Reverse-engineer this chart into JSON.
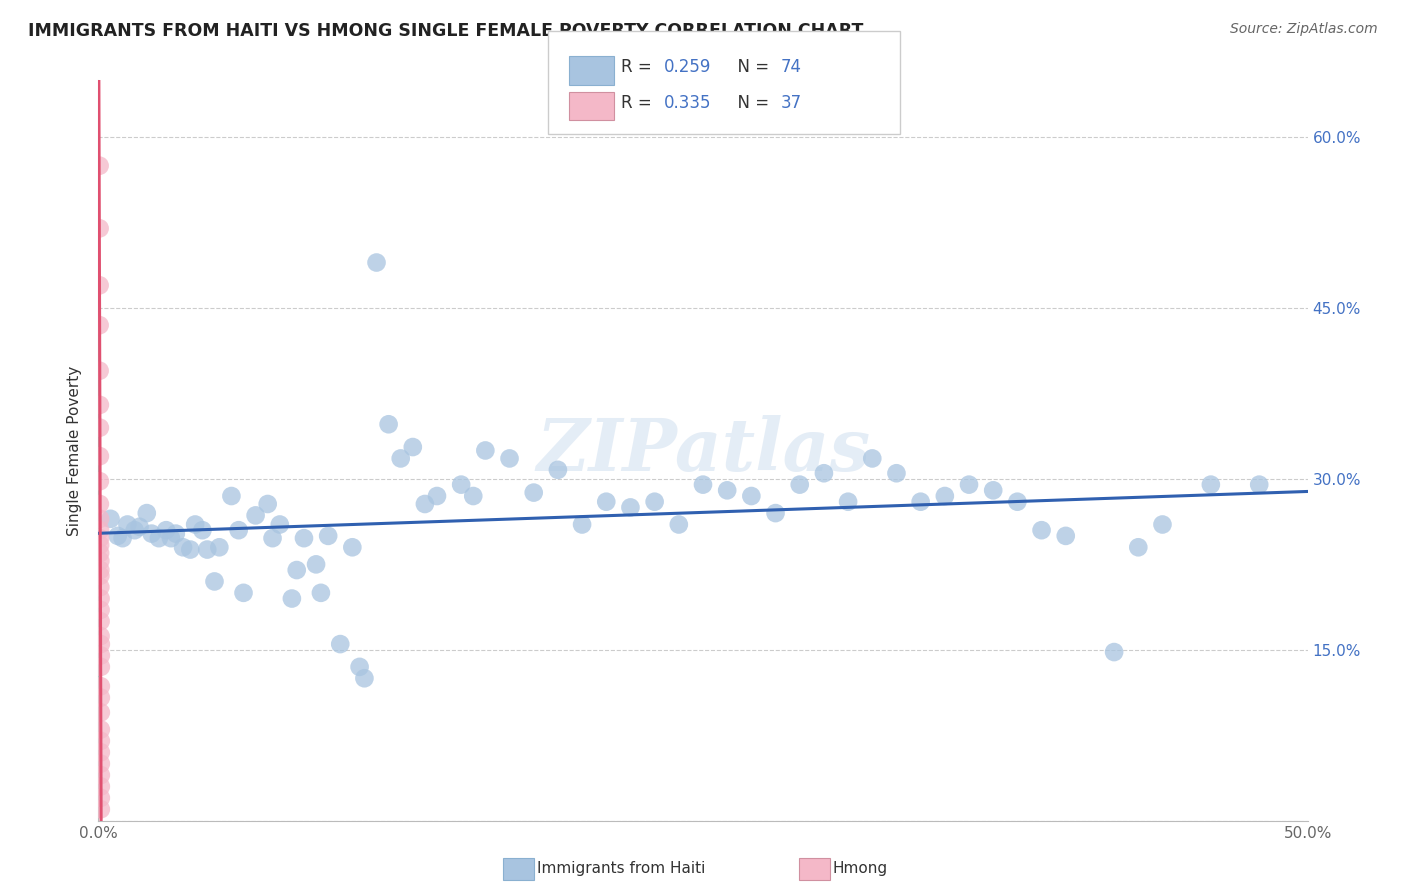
{
  "title": "IMMIGRANTS FROM HAITI VS HMONG SINGLE FEMALE POVERTY CORRELATION CHART",
  "source": "Source: ZipAtlas.com",
  "ylabel": "Single Female Poverty",
  "xlim": [
    0.0,
    0.5
  ],
  "ylim": [
    0.0,
    0.65
  ],
  "x_tick_positions": [
    0.0,
    0.1,
    0.2,
    0.3,
    0.4,
    0.5
  ],
  "x_tick_labels": [
    "0.0%",
    "",
    "",
    "",
    "",
    "50.0%"
  ],
  "y_tick_positions": [
    0.0,
    0.15,
    0.3,
    0.45,
    0.6
  ],
  "y_right_labels": [
    "",
    "15.0%",
    "30.0%",
    "45.0%",
    "60.0%"
  ],
  "haiti_R": 0.259,
  "haiti_N": 74,
  "hmong_R": 0.335,
  "hmong_N": 37,
  "haiti_color": "#a8c4e0",
  "hmong_color": "#f4b8c8",
  "haiti_line_color": "#3060b0",
  "hmong_line_color": "#e05070",
  "haiti_legend_color": "#a8c4e0",
  "hmong_legend_color": "#f4b8c8",
  "watermark": "ZIPatlas",
  "legend_label_haiti": "Immigrants from Haiti",
  "legend_label_hmong": "Hmong",
  "haiti_x": [
    0.005,
    0.008,
    0.01,
    0.012,
    0.015,
    0.017,
    0.02,
    0.022,
    0.025,
    0.028,
    0.03,
    0.032,
    0.035,
    0.038,
    0.04,
    0.043,
    0.045,
    0.048,
    0.05,
    0.055,
    0.058,
    0.06,
    0.065,
    0.07,
    0.072,
    0.075,
    0.08,
    0.082,
    0.085,
    0.09,
    0.092,
    0.095,
    0.1,
    0.105,
    0.108,
    0.11,
    0.115,
    0.12,
    0.125,
    0.13,
    0.135,
    0.14,
    0.15,
    0.155,
    0.16,
    0.17,
    0.18,
    0.19,
    0.2,
    0.21,
    0.22,
    0.23,
    0.24,
    0.25,
    0.26,
    0.27,
    0.28,
    0.29,
    0.3,
    0.31,
    0.32,
    0.33,
    0.34,
    0.35,
    0.36,
    0.37,
    0.38,
    0.39,
    0.4,
    0.42,
    0.43,
    0.44,
    0.46,
    0.48
  ],
  "haiti_y": [
    0.265,
    0.25,
    0.248,
    0.26,
    0.255,
    0.258,
    0.27,
    0.252,
    0.248,
    0.255,
    0.248,
    0.252,
    0.24,
    0.238,
    0.26,
    0.255,
    0.238,
    0.21,
    0.24,
    0.285,
    0.255,
    0.2,
    0.268,
    0.278,
    0.248,
    0.26,
    0.195,
    0.22,
    0.248,
    0.225,
    0.2,
    0.25,
    0.155,
    0.24,
    0.135,
    0.125,
    0.49,
    0.348,
    0.318,
    0.328,
    0.278,
    0.285,
    0.295,
    0.285,
    0.325,
    0.318,
    0.288,
    0.308,
    0.26,
    0.28,
    0.275,
    0.28,
    0.26,
    0.295,
    0.29,
    0.285,
    0.27,
    0.295,
    0.305,
    0.28,
    0.318,
    0.305,
    0.28,
    0.285,
    0.295,
    0.29,
    0.28,
    0.255,
    0.25,
    0.148,
    0.24,
    0.26,
    0.295,
    0.295
  ],
  "hmong_x": [
    0.0005,
    0.0005,
    0.0005,
    0.0005,
    0.0005,
    0.0006,
    0.0006,
    0.0006,
    0.0006,
    0.0006,
    0.0007,
    0.0007,
    0.0007,
    0.0007,
    0.0007,
    0.0008,
    0.0008,
    0.0008,
    0.0008,
    0.0009,
    0.0009,
    0.0009,
    0.0009,
    0.001,
    0.001,
    0.001,
    0.001,
    0.001,
    0.001,
    0.001,
    0.001,
    0.001,
    0.001,
    0.001,
    0.001,
    0.001,
    0.001
  ],
  "hmong_y": [
    0.575,
    0.52,
    0.47,
    0.435,
    0.395,
    0.365,
    0.345,
    0.32,
    0.298,
    0.278,
    0.265,
    0.255,
    0.248,
    0.242,
    0.235,
    0.228,
    0.22,
    0.215,
    0.205,
    0.195,
    0.185,
    0.175,
    0.162,
    0.155,
    0.145,
    0.135,
    0.118,
    0.108,
    0.095,
    0.08,
    0.07,
    0.06,
    0.05,
    0.04,
    0.03,
    0.02,
    0.01
  ]
}
